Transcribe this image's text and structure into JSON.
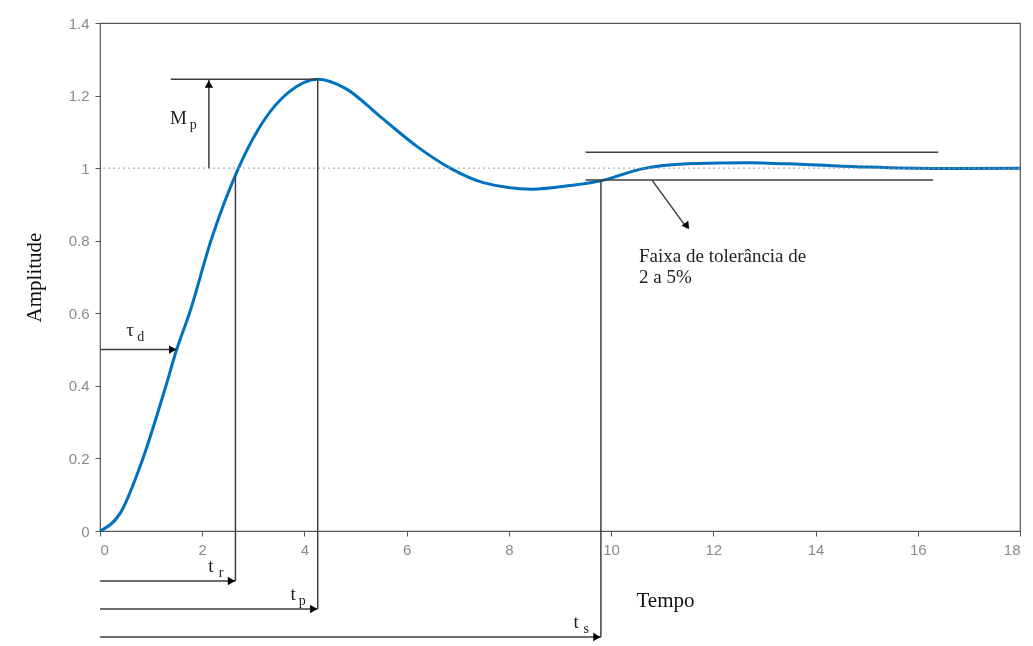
{
  "chart_data": {
    "type": "line",
    "xlabel": "Tempo",
    "ylabel": "Amplitude",
    "xlim": [
      0,
      18
    ],
    "ylim": [
      0,
      1.4
    ],
    "xticks": [
      0,
      2,
      4,
      6,
      8,
      10,
      12,
      14,
      16,
      18
    ],
    "yticks": [
      0,
      0.2,
      0.4,
      0.6,
      0.8,
      1,
      1.2,
      1.4
    ],
    "grid": false,
    "series": [
      {
        "color": "#0072bd",
        "x": [
          0,
          0.4,
          0.84,
          1.29,
          1.5,
          1.75,
          2.17,
          2.71,
          3.2,
          3.7,
          4.26,
          4.8,
          5.5,
          6.2,
          6.85,
          7.5,
          8.45,
          9.2,
          9.8,
          10.6,
          11.5,
          12.7,
          13.8,
          15,
          16.5,
          18
        ],
        "values": [
          0,
          0.05,
          0.2,
          0.4,
          0.5,
          0.6,
          0.8,
          1,
          1.13,
          1.21,
          1.245,
          1.22,
          1.14,
          1.06,
          1,
          0.96,
          0.942,
          0.952,
          0.965,
          0.998,
          1.012,
          1.015,
          1.01,
          1.003,
          0.999,
          1
        ]
      },
      {
        "type": "line",
        "color": "#404040",
        "x": [
          9.5,
          16.4
        ],
        "values": [
          1.044,
          1.044
        ]
      },
      {
        "type": "line",
        "color": "#404040",
        "x": [
          9.5,
          16.3
        ],
        "values": [
          0.967,
          0.967
        ]
      }
    ],
    "ref_lines": [
      {
        "axis": "y",
        "value": 1,
        "color": "#999999",
        "line_style": "dotted"
      },
      {
        "axis": "y",
        "value": 1.245,
        "label": "M$_{p}$",
        "color": "#404040"
      },
      {
        "axis": "x",
        "value": 2.65,
        "label": "t$_{r}$",
        "color": "#404040"
      },
      {
        "axis": "x",
        "value": 4.26,
        "label": "t$_{p}$",
        "color": "#404040"
      },
      {
        "axis": "x",
        "value": 9.8,
        "label": "t$_{s}$",
        "color": "#404040"
      }
    ],
    "annotations": [
      {
        "text": "τ$_{d}$",
        "x": 1.5,
        "y": 0.5
      },
      {
        "text": "Faixa de tolerância de\n2 a 5%",
        "x": 10.8,
        "y": 0.967
      }
    ]
  }
}
